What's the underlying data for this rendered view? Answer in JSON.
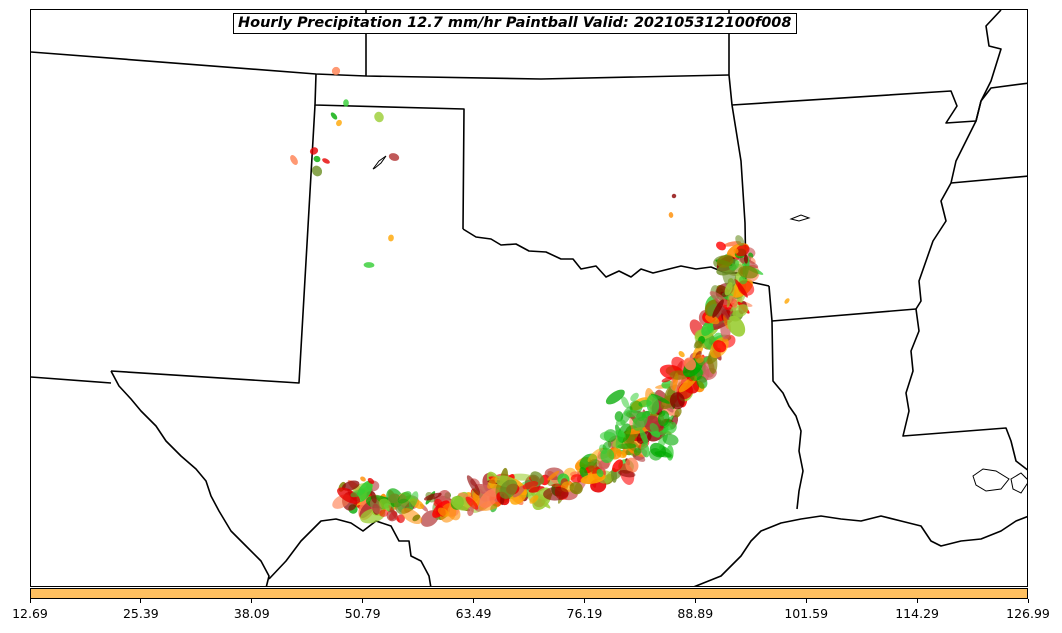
{
  "title": "Hourly Precipitation 12.7 mm/hr Paintball Valid: 202105312100f008",
  "colorbar": {
    "color": "#ffc060",
    "ticks": [
      "12.69",
      "25.39",
      "38.09",
      "50.79",
      "63.49",
      "76.19",
      "88.89",
      "101.59",
      "114.29",
      "126.99"
    ]
  },
  "colors": {
    "boundary": "#000000",
    "paintball_members": [
      "#ff8c00",
      "#ffa500",
      "#e60000",
      "#ff0000",
      "#8b0000",
      "#b03030",
      "#32cd32",
      "#00aa00",
      "#6b8e23",
      "#9acd32",
      "#808000",
      "#ff7f50",
      "#cd5c5c"
    ]
  }
}
